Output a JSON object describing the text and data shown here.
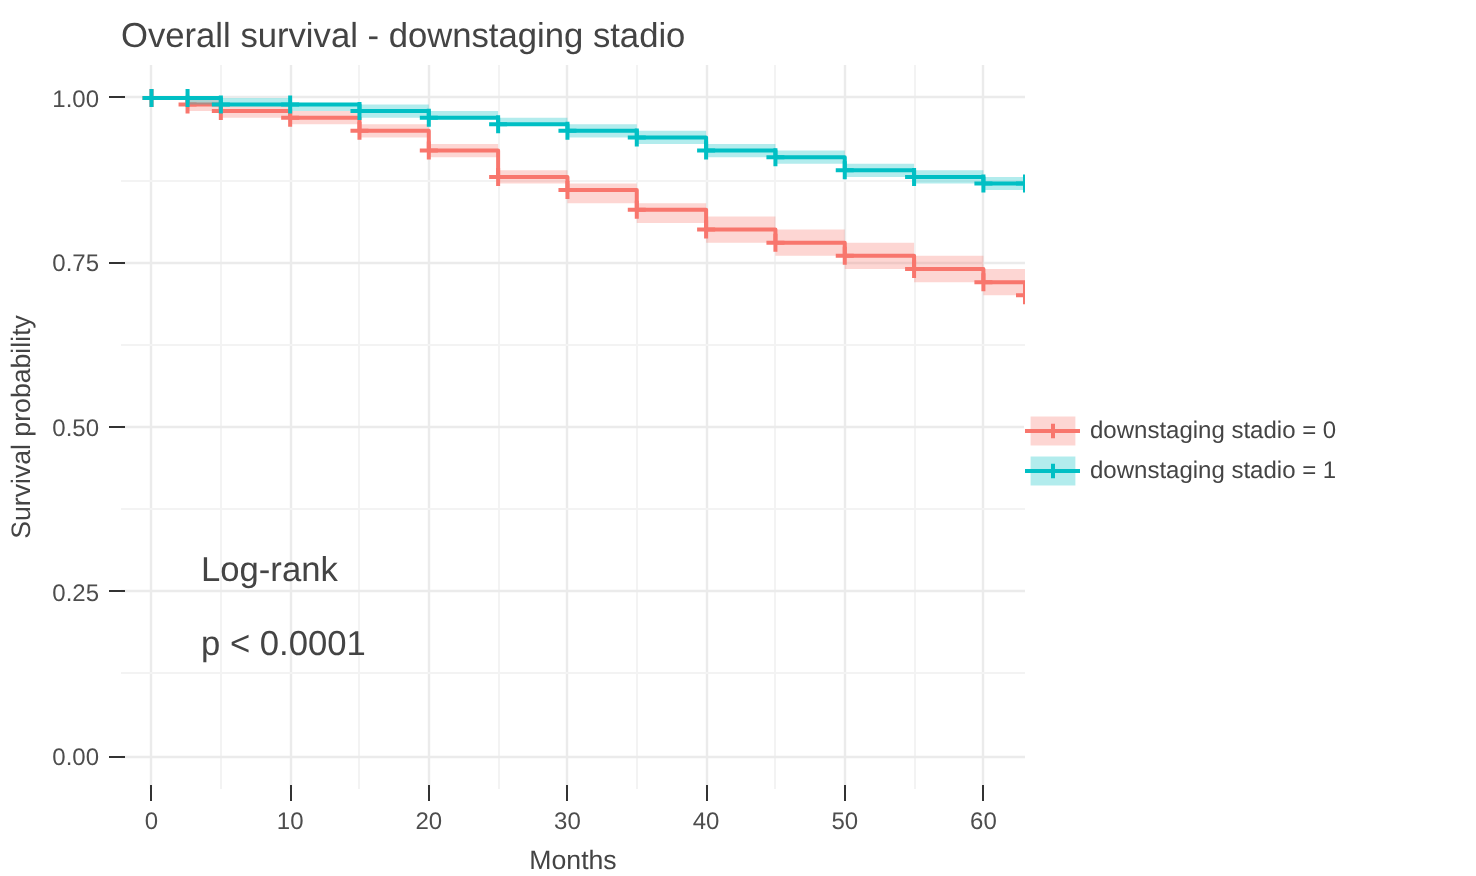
{
  "chart_data": {
    "type": "step",
    "title": "Overall survival - downstaging stadio",
    "xlabel": "Months",
    "ylabel": "Survival probability",
    "x": [
      0,
      2.6,
      5,
      10,
      15,
      20,
      25,
      30,
      35,
      40,
      45,
      50,
      55,
      60,
      63
    ],
    "series": [
      {
        "name": "downstaging stadio = 0",
        "color": "#f8766d",
        "values": [
          1.0,
          0.99,
          0.98,
          0.97,
          0.95,
          0.92,
          0.88,
          0.86,
          0.83,
          0.8,
          0.78,
          0.76,
          0.74,
          0.72,
          0.7
        ],
        "lower": [
          1.0,
          0.98,
          0.97,
          0.96,
          0.94,
          0.91,
          0.87,
          0.84,
          0.81,
          0.78,
          0.76,
          0.74,
          0.72,
          0.7,
          0.68
        ],
        "upper": [
          1.0,
          1.0,
          0.99,
          0.98,
          0.96,
          0.93,
          0.89,
          0.87,
          0.84,
          0.82,
          0.8,
          0.78,
          0.76,
          0.74,
          0.72
        ]
      },
      {
        "name": "downstaging stadio = 1",
        "color": "#00bfc4",
        "values": [
          1.0,
          1.0,
          0.99,
          0.99,
          0.98,
          0.97,
          0.96,
          0.95,
          0.94,
          0.92,
          0.91,
          0.89,
          0.88,
          0.87,
          0.87
        ],
        "lower": [
          1.0,
          0.99,
          0.99,
          0.98,
          0.97,
          0.97,
          0.96,
          0.94,
          0.93,
          0.91,
          0.9,
          0.88,
          0.87,
          0.86,
          0.85
        ],
        "upper": [
          1.0,
          1.0,
          1.0,
          0.99,
          0.99,
          0.98,
          0.97,
          0.96,
          0.95,
          0.93,
          0.92,
          0.9,
          0.89,
          0.88,
          0.88
        ]
      }
    ],
    "xlim": [
      -2.2,
      63
    ],
    "ylim": [
      -0.05,
      1.05
    ],
    "xticks": [
      0,
      10,
      20,
      30,
      40,
      50,
      60
    ],
    "yticks": [
      {
        "value": 0,
        "label": "0.00"
      },
      {
        "value": 0.25,
        "label": "0.25"
      },
      {
        "value": 0.5,
        "label": "0.50"
      },
      {
        "value": 0.75,
        "label": "0.75"
      },
      {
        "value": 1,
        "label": "1.00"
      }
    ],
    "annotations": [
      "Log-rank",
      "p < 0.0001"
    ],
    "grid": true,
    "legend": "right",
    "marker": "cross",
    "line_style": "solid"
  }
}
